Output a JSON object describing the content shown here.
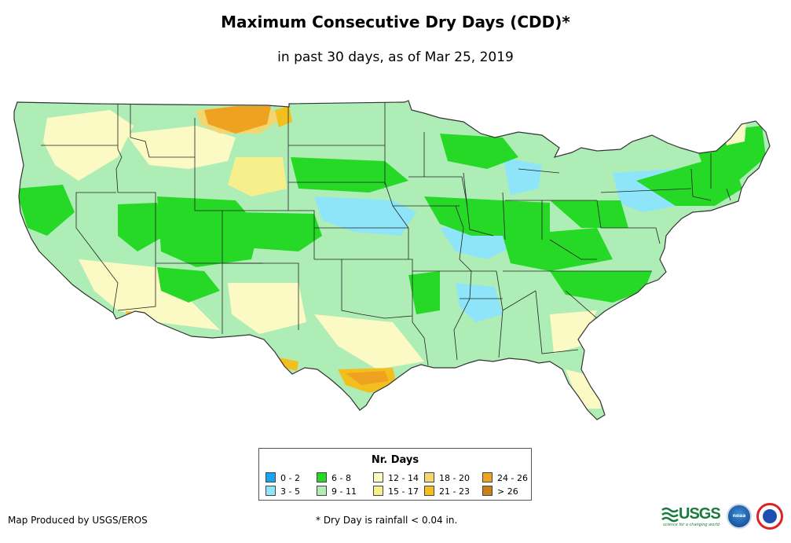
{
  "map": {
    "title": "Maximum Consecutive Dry Days (CDD)*",
    "subtitle": "in past 30 days, as of Mar 25, 2019",
    "region": "Contiguous United States"
  },
  "legend": {
    "title": "Nr. Days",
    "classes": [
      {
        "label": "0 - 2",
        "color": "#19a3f0"
      },
      {
        "label": "3 - 5",
        "color": "#8ee4f8"
      },
      {
        "label": "6 - 8",
        "color": "#26d926"
      },
      {
        "label": "9 - 11",
        "color": "#aeeeb6"
      },
      {
        "label": "12 - 14",
        "color": "#fbfac4"
      },
      {
        "label": "15 - 17",
        "color": "#f6ef8c"
      },
      {
        "label": "18 - 20",
        "color": "#f3d670"
      },
      {
        "label": "21 - 23",
        "color": "#f2bf1e"
      },
      {
        "label": "24 - 26",
        "color": "#efa220"
      },
      {
        "label": "> 26",
        "color": "#c98019"
      }
    ]
  },
  "footer": {
    "credit": "Map Produced by USGS/EROS",
    "footnote": "* Dry Day is rainfall < 0.04 in."
  },
  "logos": {
    "usgs_text": "USGS",
    "usgs_tagline": "science for a changing world",
    "noaa_text": "noaa"
  },
  "colors": {
    "state_border": "#222222",
    "background": "#ffffff"
  }
}
